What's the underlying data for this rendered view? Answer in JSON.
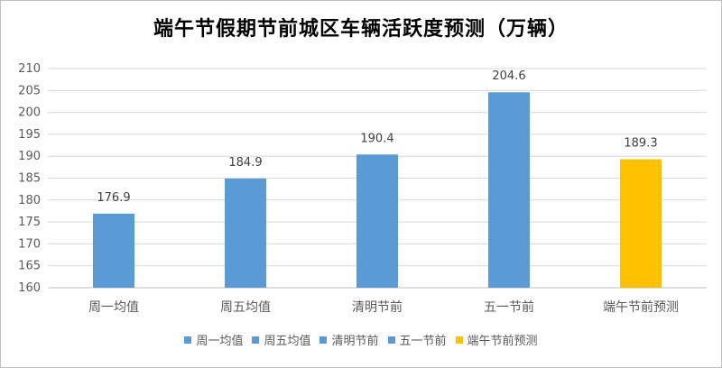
{
  "chart_data": {
    "type": "bar",
    "title": "端午节假期节前城区车辆活跃度预测（万辆）",
    "categories": [
      "周一均值",
      "周五均值",
      "清明节前",
      "五一节前",
      "端午节前预测"
    ],
    "values": [
      176.9,
      184.9,
      190.4,
      204.6,
      189.3
    ],
    "value_labels": [
      "176.9",
      "184.9",
      "190.4",
      "204.6",
      "189.3"
    ],
    "colors": [
      "#5b9bd5",
      "#5b9bd5",
      "#5b9bd5",
      "#5b9bd5",
      "#ffc000"
    ],
    "ylim": [
      160,
      210
    ],
    "yticks": [
      160,
      165,
      170,
      175,
      180,
      185,
      190,
      195,
      200,
      205,
      210
    ],
    "grid": true,
    "legend_position": "bottom",
    "xlabel": "",
    "ylabel": ""
  }
}
